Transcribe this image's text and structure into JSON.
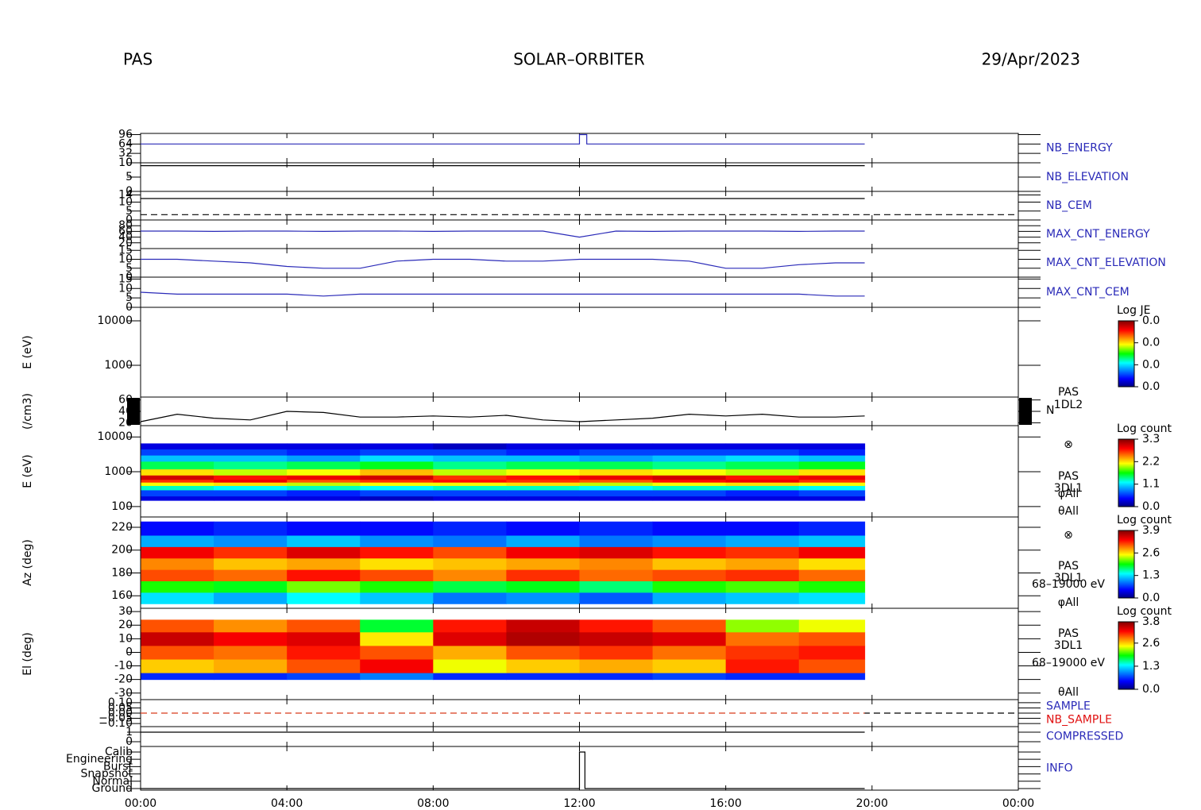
{
  "header": {
    "left": "PAS",
    "center": "SOLAR–ORBITER",
    "right": "29/Apr/2023"
  },
  "time_axis": {
    "xlim": [
      0,
      24
    ],
    "xticks": [
      {
        "value": 0,
        "label": "00:00"
      },
      {
        "value": 4,
        "label": "04:00"
      },
      {
        "value": 8,
        "label": "08:00"
      },
      {
        "value": 12,
        "label": "12:00"
      },
      {
        "value": 16,
        "label": "16:00"
      },
      {
        "value": 20,
        "label": "20:00"
      },
      {
        "value": 24,
        "label": "00:00"
      }
    ]
  },
  "chart_data": [
    {
      "type": "line",
      "ylim": [
        0,
        100
      ],
      "yticks": [
        0,
        32,
        64,
        96
      ],
      "series": [
        {
          "name": "NB_ENERGY",
          "color": "#2a2ab8",
          "x": [
            0,
            12,
            12,
            12.2,
            12.2,
            19.8
          ],
          "values": [
            64,
            64,
            96,
            96,
            64,
            64
          ]
        }
      ]
    },
    {
      "type": "line",
      "ylim": [
        0,
        10
      ],
      "yticks": [
        0,
        5,
        10
      ],
      "series": [
        {
          "name": "NB_ELEVATION",
          "color": "#000000",
          "x": [
            0,
            19.8
          ],
          "values": [
            9,
            9
          ]
        }
      ]
    },
    {
      "type": "line",
      "ylim": [
        0,
        16
      ],
      "yticks": [
        0,
        5,
        10,
        14
      ],
      "series": [
        {
          "name": "NB_CEM",
          "color": "#000000",
          "x": [
            0,
            19.8
          ],
          "values": [
            12,
            12
          ]
        },
        {
          "color": "#000000",
          "dash": true,
          "x": [
            0,
            24
          ],
          "values": [
            3,
            3
          ]
        }
      ]
    },
    {
      "type": "line",
      "ylim": [
        0,
        100
      ],
      "yticks": [
        20,
        40,
        60,
        80
      ],
      "series": [
        {
          "name": "MAX_CNT_ENERGY",
          "color": "#2a2ab8",
          "x": [
            0,
            1,
            2,
            3,
            4,
            5,
            6,
            7,
            8,
            9,
            10,
            11,
            12,
            13,
            14,
            15,
            16,
            17,
            18,
            19,
            19.8
          ],
          "values": [
            61,
            61,
            60,
            61,
            61,
            60,
            61,
            61,
            60,
            61,
            61,
            61,
            40,
            61,
            60,
            61,
            61,
            61,
            60,
            61,
            61
          ]
        }
      ]
    },
    {
      "type": "line",
      "ylim": [
        0,
        16
      ],
      "yticks": [
        0,
        5,
        10,
        15
      ],
      "series": [
        {
          "name": "MAX_CNT_ELEVATION",
          "color": "#2a2ab8",
          "x": [
            0,
            1,
            2,
            3,
            4,
            5,
            6,
            7,
            8,
            9,
            10,
            11,
            12,
            13,
            14,
            15,
            16,
            17,
            18,
            19,
            19.8
          ],
          "values": [
            10,
            10,
            9,
            8,
            6,
            5,
            5,
            9,
            10,
            10,
            9,
            9,
            10,
            10,
            10,
            9,
            5,
            5,
            7,
            8,
            8
          ]
        }
      ]
    },
    {
      "type": "line",
      "ylim": [
        0,
        16
      ],
      "yticks": [
        0,
        5,
        10,
        15
      ],
      "series": [
        {
          "name": "MAX_CNT_CEM",
          "color": "#2a2ab8",
          "x": [
            0,
            1,
            2,
            3,
            4,
            5,
            6,
            7,
            8,
            9,
            10,
            11,
            12,
            13,
            14,
            15,
            16,
            17,
            18,
            19,
            19.8
          ],
          "values": [
            8,
            7,
            7,
            7,
            7,
            6,
            7,
            7,
            7,
            7,
            7,
            7,
            7,
            7,
            7,
            7,
            7,
            7,
            7,
            6,
            6
          ]
        }
      ]
    },
    {
      "type": "heatmap",
      "log": true,
      "ylabel": "E (eV)",
      "ylim": [
        193,
        20100
      ],
      "yticks": [
        1000,
        10000
      ],
      "colorbar": {
        "title": "Log JE",
        "ticks": [
          "0.0",
          "0.0",
          "0.0",
          "0.0"
        ]
      }
    },
    {
      "type": "line",
      "ylabel": "(/cm3)",
      "ylim": [
        15,
        65
      ],
      "yticks": [
        20,
        40,
        60
      ],
      "labels": [
        "PAS",
        "1DL2",
        "N"
      ],
      "series": [
        {
          "color": "#000000",
          "x": [
            0,
            1,
            2,
            3,
            4,
            5,
            6,
            7,
            8,
            9,
            10,
            11,
            12,
            13,
            14,
            15,
            16,
            17,
            18,
            19,
            19.8
          ],
          "values": [
            22,
            35,
            28,
            25,
            40,
            38,
            30,
            30,
            32,
            30,
            33,
            25,
            22,
            25,
            28,
            35,
            32,
            35,
            30,
            30,
            32
          ]
        }
      ]
    },
    {
      "type": "heatmap",
      "log": true,
      "ylabel": "E (eV)",
      "ylim": [
        50,
        21100
      ],
      "yticks": [
        100,
        1000,
        10000
      ],
      "labels": [
        "⊗",
        "PAS",
        "3DL1",
        "φAll",
        "θAll"
      ],
      "colorbar": {
        "title": "Log count",
        "clim": [
          0,
          3.3
        ],
        "ticks": [
          {
            "value": 0,
            "label": "0.0"
          },
          1.1,
          2.2,
          3.3
        ]
      },
      "xbins": [
        0,
        2,
        4,
        6,
        8,
        10,
        12,
        14,
        16,
        18,
        19.8
      ],
      "ybins": [
        150,
        200,
        300,
        400,
        500,
        600,
        800,
        1200,
        2000,
        3000,
        4500,
        6500
      ],
      "z": [
        [
          0.3,
          0.3,
          0.3,
          0.2,
          0.3,
          0.3,
          0.3,
          0.3,
          0.3,
          0.3
        ],
        [
          0.6,
          0.6,
          0.5,
          0.6,
          0.6,
          0.6,
          0.6,
          0.6,
          0.5,
          0.6
        ],
        [
          1.3,
          1.2,
          1.3,
          1.2,
          1.3,
          1.3,
          1.2,
          1.3,
          1.3,
          1.2
        ],
        [
          2.1,
          2.2,
          2.0,
          2.1,
          2.1,
          2.2,
          2.0,
          2.1,
          2.2,
          2.1
        ],
        [
          2.7,
          2.9,
          2.6,
          2.7,
          2.8,
          2.7,
          2.6,
          2.8,
          2.9,
          2.7
        ],
        [
          3.0,
          2.8,
          2.9,
          3.0,
          2.7,
          2.8,
          2.9,
          3.0,
          2.8,
          2.9
        ],
        [
          2.2,
          2.0,
          2.1,
          2.3,
          2.0,
          2.1,
          2.2,
          2.1,
          2.0,
          2.2
        ],
        [
          1.5,
          1.4,
          1.5,
          1.6,
          1.4,
          1.5,
          1.5,
          1.4,
          1.5,
          1.6
        ],
        [
          1.0,
          1.0,
          0.9,
          1.1,
          1.0,
          1.0,
          0.9,
          1.0,
          1.1,
          1.0
        ],
        [
          0.6,
          0.6,
          0.5,
          0.6,
          0.6,
          0.5,
          0.6,
          0.6,
          0.6,
          0.5
        ],
        [
          0.3,
          0.3,
          0.3,
          0.3,
          0.2,
          0.3,
          0.3,
          0.3,
          0.3,
          0.3
        ]
      ]
    },
    {
      "type": "heatmap",
      "ylabel": "Az (deg)",
      "ylim": [
        149,
        229
      ],
      "yticks": [
        160,
        180,
        200,
        220
      ],
      "labels": [
        "⊗",
        "PAS",
        "3DL1",
        "68–19000 eV",
        "φAll"
      ],
      "colorbar": {
        "title": "Log count",
        "clim": [
          0,
          3.9
        ],
        "ticks": [
          {
            "value": 0,
            "label": "0.0"
          },
          1.3,
          2.6,
          3.9
        ]
      },
      "xbins": [
        0,
        2,
        4,
        6,
        8,
        10,
        12,
        14,
        16,
        18,
        19.8
      ],
      "ybins": [
        153,
        163,
        173,
        183,
        193,
        203,
        213,
        225
      ],
      "z": [
        [
          1.3,
          1.1,
          1.4,
          1.2,
          0.9,
          1.0,
          0.8,
          1.1,
          1.2,
          1.3
        ],
        [
          2.0,
          1.9,
          2.2,
          2.0,
          1.8,
          1.9,
          1.7,
          2.0,
          2.1,
          2.0
        ],
        [
          3.1,
          3.0,
          3.3,
          3.1,
          2.9,
          3.2,
          3.0,
          3.1,
          3.2,
          3.0
        ],
        [
          2.9,
          2.7,
          2.8,
          2.6,
          2.7,
          2.8,
          2.9,
          2.7,
          2.8,
          2.6
        ],
        [
          3.4,
          3.2,
          3.5,
          3.3,
          3.1,
          3.4,
          3.5,
          3.3,
          3.2,
          3.4
        ],
        [
          1.1,
          1.0,
          1.2,
          1.0,
          0.9,
          1.1,
          0.9,
          1.0,
          1.1,
          1.2
        ],
        [
          0.5,
          0.6,
          0.5,
          0.5,
          0.6,
          0.5,
          0.6,
          0.5,
          0.5,
          0.6
        ]
      ]
    },
    {
      "type": "heatmap",
      "ylabel": "El (deg)",
      "ylim": [
        -34.8,
        32.4
      ],
      "yticks": [
        -30,
        -20,
        -10,
        0,
        10,
        20,
        30
      ],
      "labels": [
        "PAS",
        "3DL1",
        "68–19000 eV",
        "θAll"
      ],
      "colorbar": {
        "title": "Log count",
        "clim": [
          0,
          3.8
        ],
        "ticks": [
          {
            "value": 0,
            "label": "0.0"
          },
          1.3,
          2.6,
          3.8
        ]
      },
      "xbins": [
        0,
        2,
        4,
        6,
        8,
        10,
        12,
        14,
        16,
        18,
        19.8
      ],
      "ybins": [
        -20,
        -15,
        -5,
        5,
        15,
        24
      ],
      "z": [
        [
          0.6,
          0.6,
          0.7,
          0.9,
          0.6,
          0.6,
          0.6,
          0.7,
          0.6,
          0.6
        ],
        [
          2.6,
          2.7,
          3.0,
          3.3,
          2.4,
          2.6,
          2.7,
          2.6,
          3.2,
          3.0
        ],
        [
          3.0,
          2.9,
          3.2,
          3.0,
          2.7,
          3.0,
          3.1,
          2.9,
          3.1,
          3.2
        ],
        [
          3.5,
          3.3,
          3.4,
          2.5,
          3.4,
          3.6,
          3.5,
          3.4,
          2.9,
          3.0
        ],
        [
          3.0,
          2.8,
          3.0,
          1.8,
          3.2,
          3.5,
          3.2,
          3.0,
          2.2,
          2.4
        ]
      ]
    },
    {
      "type": "line",
      "ylim": [
        -0.13,
        0.13
      ],
      "yticks": [
        {
          "value": -0.1,
          "label": "−0.10"
        },
        {
          "value": -0.05,
          "label": "−0.05"
        },
        {
          "value": 0,
          "label": "0.00"
        },
        {
          "value": 0.05,
          "label": "0.05"
        },
        {
          "value": 0.1,
          "label": "0.10"
        }
      ],
      "series": [
        {
          "name": "SAMPLE",
          "color": "#000000",
          "label_color": "#2a2ab8",
          "dash": true,
          "x": [
            0,
            24
          ],
          "values": [
            0,
            0
          ]
        },
        {
          "name": "NB_SAMPLE",
          "color": "#ff6040",
          "label_color": "#e01010",
          "dash": true,
          "x": [
            0,
            19.8
          ],
          "values": [
            0,
            0
          ]
        }
      ]
    },
    {
      "type": "line",
      "ylim": [
        -0.5,
        1.58
      ],
      "yticks": [
        0,
        1
      ],
      "series": [
        {
          "name": "COMPRESSED",
          "color": "#000000",
          "x": [
            0,
            19.8
          ],
          "values": [
            1,
            1
          ]
        }
      ]
    },
    {
      "type": "line",
      "ylim": [
        -0.22,
        5.76
      ],
      "yticks": [
        {
          "value": 0,
          "label": "Ground"
        },
        {
          "value": 1,
          "label": "Normal"
        },
        {
          "value": 2,
          "label": "Snapshot"
        },
        {
          "value": 3,
          "label": "Burst"
        },
        {
          "value": 4,
          "label": "Engineering"
        },
        {
          "value": 5,
          "label": "Calib"
        }
      ],
      "series": [
        {
          "name": "INFO",
          "color": "#000000",
          "x": [
            0,
            12,
            12,
            12.15,
            12.15,
            19.8
          ],
          "values": [
            0,
            0,
            5,
            5,
            0,
            0
          ]
        }
      ]
    }
  ]
}
